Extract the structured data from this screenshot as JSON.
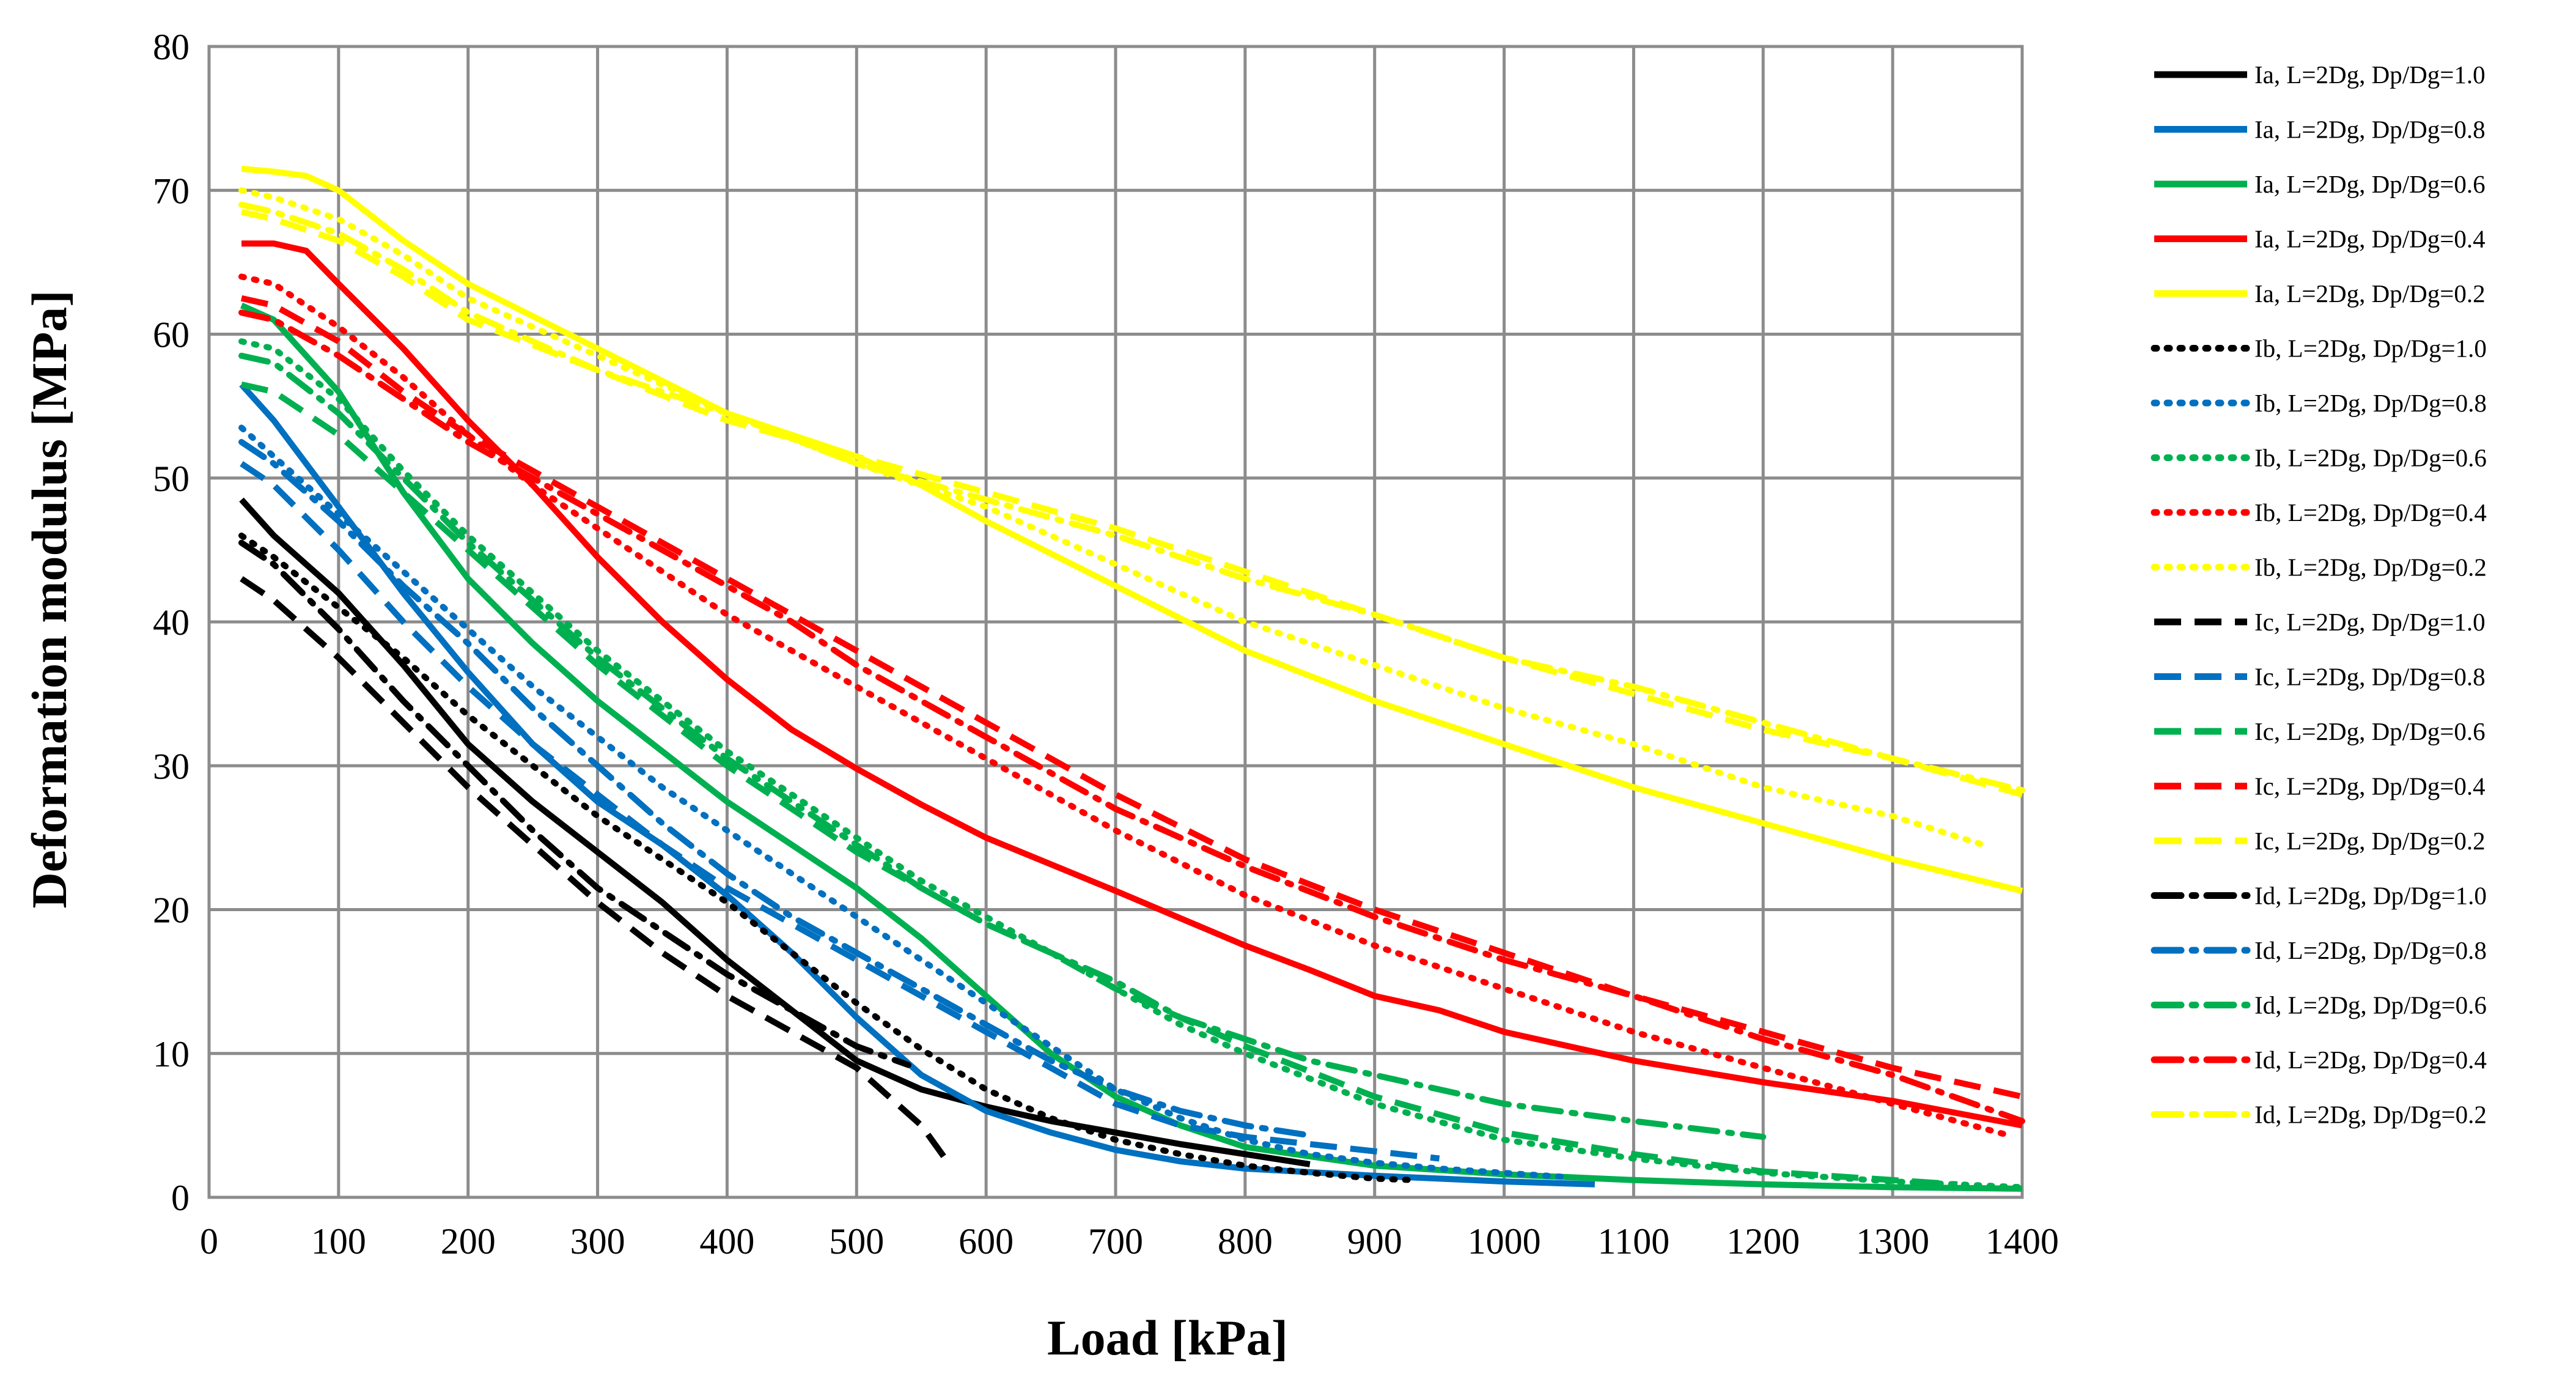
{
  "chart_data": {
    "type": "line",
    "xlabel": "Load [kPa]",
    "ylabel": "Deformation modulus  [MPa]",
    "xlim": [
      0,
      1400
    ],
    "ylim": [
      0,
      80
    ],
    "xticks": [
      0,
      100,
      200,
      300,
      400,
      500,
      600,
      700,
      800,
      900,
      1000,
      1100,
      1200,
      1300,
      1400
    ],
    "yticks": [
      0,
      10,
      20,
      30,
      40,
      50,
      60,
      70,
      80
    ],
    "grid": true,
    "legend_position": "right",
    "styles": {
      "Ia": "solid",
      "Ib": "dotted",
      "Ic": "dashed",
      "Id": "dash-dot"
    },
    "colors": {
      "1.0": "#000000",
      "0.8": "#0070C0",
      "0.6": "#00B050",
      "0.4": "#FF0000",
      "0.2": "#FFFF00"
    },
    "series": [
      {
        "name": "Ia, L=2Dg, Dp/Dg=1.0",
        "style": "solid",
        "color": "#000000",
        "x": [
          25,
          50,
          100,
          150,
          200,
          250,
          300,
          350,
          400,
          450,
          500,
          550,
          600,
          650,
          700,
          750,
          800,
          850
        ],
        "y": [
          48.5,
          46,
          42,
          37,
          31.5,
          27.5,
          24,
          20.5,
          16.5,
          13,
          9.5,
          7.5,
          6.3,
          5.3,
          4.5,
          3.7,
          3,
          2.3
        ]
      },
      {
        "name": "Ia, L=2Dg, Dp/Dg=0.8",
        "style": "solid",
        "color": "#0070C0",
        "x": [
          25,
          50,
          100,
          150,
          200,
          250,
          300,
          350,
          400,
          450,
          500,
          550,
          600,
          650,
          700,
          750,
          800,
          900,
          1000,
          1070
        ],
        "y": [
          56.5,
          54,
          48,
          42,
          36.5,
          31.5,
          27.5,
          24.5,
          21,
          17,
          12.5,
          8.5,
          6,
          4.5,
          3.3,
          2.5,
          2,
          1.5,
          1.1,
          0.9
        ]
      },
      {
        "name": "Ia, L=2Dg, Dp/Dg=0.6",
        "style": "solid",
        "color": "#00B050",
        "x": [
          25,
          50,
          100,
          150,
          200,
          250,
          300,
          350,
          400,
          450,
          500,
          550,
          600,
          650,
          700,
          750,
          800,
          900,
          1000,
          1100,
          1200,
          1300,
          1400
        ],
        "y": [
          62,
          61,
          56,
          49,
          43,
          38.5,
          34.5,
          31,
          27.5,
          24.5,
          21.5,
          18,
          14,
          10,
          7,
          5,
          3.5,
          2.2,
          1.6,
          1.2,
          0.9,
          0.7,
          0.6
        ]
      },
      {
        "name": "Ia, L=2Dg, Dp/Dg=0.4",
        "style": "solid",
        "color": "#FF0000",
        "x": [
          25,
          50,
          75,
          100,
          150,
          200,
          250,
          300,
          350,
          400,
          450,
          500,
          550,
          600,
          700,
          800,
          850,
          900,
          950,
          1000,
          1100,
          1200,
          1300,
          1400
        ],
        "y": [
          66.3,
          66.3,
          65.8,
          63.5,
          59,
          54,
          49.5,
          44.5,
          40,
          36,
          32.5,
          29.8,
          27.3,
          25,
          21.3,
          17.5,
          15.8,
          14,
          13,
          11.5,
          9.5,
          8,
          6.7,
          5
        ]
      },
      {
        "name": "Ia, L=2Dg, Dp/Dg=0.2",
        "style": "solid",
        "color": "#FFFF00",
        "x": [
          25,
          50,
          75,
          100,
          150,
          200,
          300,
          400,
          500,
          550,
          600,
          700,
          800,
          900,
          1000,
          1100,
          1200,
          1300,
          1400
        ],
        "y": [
          71.5,
          71.3,
          71,
          70,
          66.5,
          63.5,
          59,
          54.5,
          51.5,
          49.5,
          47,
          42.5,
          38,
          34.5,
          31.5,
          28.5,
          26,
          23.5,
          21.3
        ]
      },
      {
        "name": "Ib, L=2Dg, Dp/Dg=1.0",
        "style": "dotted",
        "color": "#000000",
        "x": [
          25,
          50,
          100,
          150,
          200,
          250,
          300,
          350,
          400,
          450,
          500,
          550,
          600,
          650,
          700,
          750,
          800,
          850,
          900,
          930
        ],
        "y": [
          46,
          44.5,
          41,
          37.5,
          33.5,
          30,
          26.5,
          23.5,
          20.5,
          17,
          13.5,
          10.3,
          7.5,
          5.5,
          4,
          3,
          2.2,
          1.7,
          1.3,
          1.2
        ]
      },
      {
        "name": "Ib, L=2Dg, Dp/Dg=0.8",
        "style": "dotted",
        "color": "#0070C0",
        "x": [
          25,
          50,
          100,
          150,
          200,
          250,
          300,
          350,
          400,
          450,
          500,
          550,
          600,
          650,
          700,
          750,
          800,
          850,
          900,
          950,
          1000,
          1050
        ],
        "y": [
          53.5,
          51.5,
          47.5,
          43.5,
          39.5,
          35.5,
          32,
          28.5,
          25.5,
          22.5,
          19.5,
          16.5,
          13.5,
          10.5,
          7.5,
          5.5,
          4,
          3,
          2.4,
          2,
          1.7,
          1.4
        ]
      },
      {
        "name": "Ib, L=2Dg, Dp/Dg=0.6",
        "style": "dotted",
        "color": "#00B050",
        "x": [
          25,
          50,
          100,
          150,
          200,
          250,
          300,
          350,
          400,
          450,
          500,
          550,
          600,
          650,
          700,
          750,
          800,
          900,
          1000,
          1100,
          1200,
          1300,
          1400
        ],
        "y": [
          59.5,
          59,
          55.5,
          50.5,
          46,
          42,
          38,
          34.5,
          31,
          28,
          25,
          22,
          19.5,
          17,
          14.5,
          12,
          10,
          6.5,
          4,
          2.7,
          1.7,
          1.1,
          0.7
        ]
      },
      {
        "name": "Ib, L=2Dg, Dp/Dg=0.4",
        "style": "dotted",
        "color": "#FF0000",
        "x": [
          25,
          50,
          100,
          150,
          200,
          250,
          300,
          350,
          400,
          450,
          500,
          600,
          700,
          800,
          900,
          1000,
          1100,
          1200,
          1300,
          1390
        ],
        "y": [
          64,
          63.5,
          60.5,
          57,
          53,
          49.5,
          46.5,
          43.5,
          40.5,
          38,
          35.5,
          30.5,
          25.5,
          21,
          17.5,
          14.5,
          11.5,
          9,
          6.5,
          4.3
        ]
      },
      {
        "name": "Ib, L=2Dg, Dp/Dg=0.2",
        "style": "dotted",
        "color": "#FFFF00",
        "x": [
          25,
          50,
          100,
          150,
          200,
          300,
          400,
          500,
          600,
          700,
          800,
          900,
          1000,
          1100,
          1200,
          1300,
          1370
        ],
        "y": [
          70,
          69.5,
          68,
          65.5,
          62.5,
          58.5,
          54.5,
          51,
          48,
          44,
          40,
          37,
          34,
          31.5,
          28.5,
          26.5,
          24.5
        ]
      },
      {
        "name": "Ic, L=2Dg, Dp/Dg=1.0",
        "style": "dashed",
        "color": "#000000",
        "x": [
          25,
          50,
          100,
          150,
          200,
          250,
          300,
          350,
          400,
          450,
          500,
          550,
          570
        ],
        "y": [
          43,
          41.5,
          37.5,
          33,
          28.5,
          24.5,
          20.5,
          17,
          14,
          11.5,
          9,
          5,
          2.5
        ]
      },
      {
        "name": "Ic, L=2Dg, Dp/Dg=0.8",
        "style": "dashed",
        "color": "#0070C0",
        "x": [
          25,
          50,
          100,
          150,
          200,
          250,
          300,
          350,
          400,
          450,
          500,
          550,
          600,
          650,
          700,
          750,
          800,
          850,
          900,
          950
        ],
        "y": [
          51,
          49.5,
          45,
          40,
          35.5,
          31.5,
          28,
          24.5,
          21.5,
          19,
          16.5,
          14,
          11.5,
          9,
          6.5,
          5,
          4.2,
          3.7,
          3.2,
          2.7
        ]
      },
      {
        "name": "Ic, L=2Dg, Dp/Dg=0.6",
        "style": "dashed",
        "color": "#00B050",
        "x": [
          25,
          50,
          100,
          150,
          200,
          250,
          300,
          350,
          400,
          450,
          500,
          550,
          600,
          650,
          700,
          750,
          800,
          900,
          1000,
          1100,
          1200,
          1300,
          1350
        ],
        "y": [
          56.5,
          56,
          53,
          49,
          45,
          41,
          37,
          33.5,
          30,
          27,
          24,
          21.5,
          19,
          17,
          14.5,
          12.5,
          10.5,
          7,
          4.5,
          3,
          1.8,
          1.2,
          0.9
        ]
      },
      {
        "name": "Ic, L=2Dg, Dp/Dg=0.4",
        "style": "dashed",
        "color": "#FF0000",
        "x": [
          25,
          50,
          100,
          150,
          200,
          250,
          300,
          350,
          400,
          450,
          500,
          600,
          700,
          800,
          900,
          1000,
          1100,
          1200,
          1300,
          1400
        ],
        "y": [
          62.5,
          62,
          59.5,
          56,
          53,
          50.5,
          48,
          45.5,
          43,
          40.5,
          38,
          33,
          28,
          23.5,
          20,
          17,
          14,
          11.5,
          9,
          7
        ]
      },
      {
        "name": "Ic, L=2Dg, Dp/Dg=0.2",
        "style": "dashed",
        "color": "#FFFF00",
        "x": [
          25,
          50,
          100,
          150,
          200,
          300,
          400,
          500,
          600,
          700,
          800,
          900,
          1000,
          1100,
          1200,
          1300,
          1400
        ],
        "y": [
          68.5,
          68,
          66.5,
          64,
          61,
          57.5,
          54,
          51.5,
          49,
          46.5,
          43.5,
          40.5,
          37.5,
          35,
          32.5,
          30.5,
          28
        ]
      },
      {
        "name": "Id, L=2Dg, Dp/Dg=1.0",
        "style": "dash-dot",
        "color": "#000000",
        "x": [
          25,
          50,
          100,
          150,
          200,
          250,
          300,
          350,
          400,
          450,
          500,
          540
        ],
        "y": [
          45.5,
          44,
          39.5,
          34.5,
          30,
          25.5,
          21.5,
          18.5,
          15.5,
          13,
          10.5,
          9.2
        ]
      },
      {
        "name": "Id, L=2Dg, Dp/Dg=0.8",
        "style": "dash-dot",
        "color": "#0070C0",
        "x": [
          25,
          50,
          100,
          150,
          200,
          250,
          300,
          350,
          400,
          450,
          500,
          550,
          600,
          650,
          700,
          750,
          800,
          850
        ],
        "y": [
          52.5,
          51,
          47,
          42.5,
          38.5,
          34,
          30,
          26,
          22.5,
          19.5,
          17,
          14.5,
          12,
          9.5,
          7.5,
          6,
          5,
          4.3
        ]
      },
      {
        "name": "Id, L=2Dg, Dp/Dg=0.6",
        "style": "dash-dot",
        "color": "#00B050",
        "x": [
          25,
          50,
          100,
          150,
          200,
          250,
          300,
          350,
          400,
          450,
          500,
          550,
          600,
          650,
          700,
          750,
          800,
          850,
          900,
          950,
          1000,
          1100,
          1200
        ],
        "y": [
          58.5,
          58,
          54.5,
          50,
          45.5,
          41.5,
          37.5,
          34,
          30.5,
          27.5,
          24.5,
          21.5,
          19,
          17,
          15,
          12.5,
          11,
          9.5,
          8.5,
          7.5,
          6.5,
          5.3,
          4.2
        ]
      },
      {
        "name": "Id, L=2Dg, Dp/Dg=0.4",
        "style": "dash-dot",
        "color": "#FF0000",
        "x": [
          25,
          50,
          100,
          150,
          200,
          250,
          300,
          350,
          400,
          450,
          500,
          600,
          700,
          800,
          900,
          1000,
          1100,
          1200,
          1300,
          1400
        ],
        "y": [
          61.5,
          61,
          58.5,
          55.5,
          52.5,
          50,
          47.5,
          45,
          42.5,
          40,
          37,
          32,
          27,
          23,
          19.5,
          16.5,
          14,
          11,
          8.5,
          5.3
        ]
      },
      {
        "name": "Id, L=2Dg, Dp/Dg=0.2",
        "style": "dash-dot",
        "color": "#FFFF00",
        "x": [
          25,
          50,
          100,
          150,
          200,
          300,
          400,
          500,
          600,
          700,
          800,
          900,
          1000,
          1100,
          1200,
          1300,
          1400
        ],
        "y": [
          69,
          68.5,
          67,
          64.5,
          61.5,
          57.5,
          54.5,
          51,
          48.5,
          46,
          43,
          40.5,
          37.5,
          35.5,
          33,
          30.5,
          28.3
        ]
      }
    ]
  }
}
